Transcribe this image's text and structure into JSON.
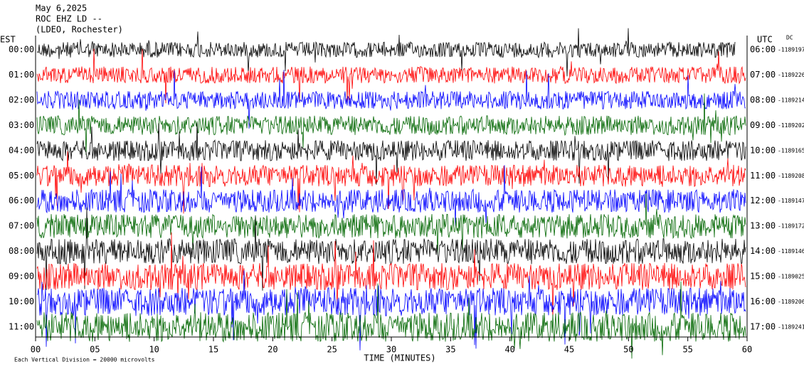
{
  "header": {
    "date": "May 6,2025",
    "station": "ROC EHZ LD --",
    "location": "(LDEO, Rochester)"
  },
  "left_axis": {
    "title": "EST",
    "labels": [
      "00:00",
      "01:00",
      "02:00",
      "03:00",
      "04:00",
      "05:00",
      "06:00",
      "07:00",
      "08:00",
      "09:00",
      "10:00",
      "11:00"
    ]
  },
  "right_axis": {
    "title": "UTC",
    "dc_title": "DC",
    "labels": [
      "06:00",
      "07:00",
      "08:00",
      "09:00",
      "10:00",
      "11:00",
      "12:00",
      "13:00",
      "14:00",
      "15:00",
      "16:00",
      "17:00"
    ],
    "dc": [
      -1189197,
      -1189226,
      -1189214,
      -1189202,
      -1189165,
      -1189208,
      -1189147,
      -1189172,
      -1189146,
      -1189025,
      -1189206,
      -1189241
    ]
  },
  "x_axis": {
    "labels": [
      "00",
      "05",
      "10",
      "15",
      "20",
      "25",
      "30",
      "35",
      "40",
      "45",
      "50",
      "55",
      "60"
    ],
    "title": "TIME (MINUTES)"
  },
  "footer": "Each Vertical Division = 20000 microvolts"
}
